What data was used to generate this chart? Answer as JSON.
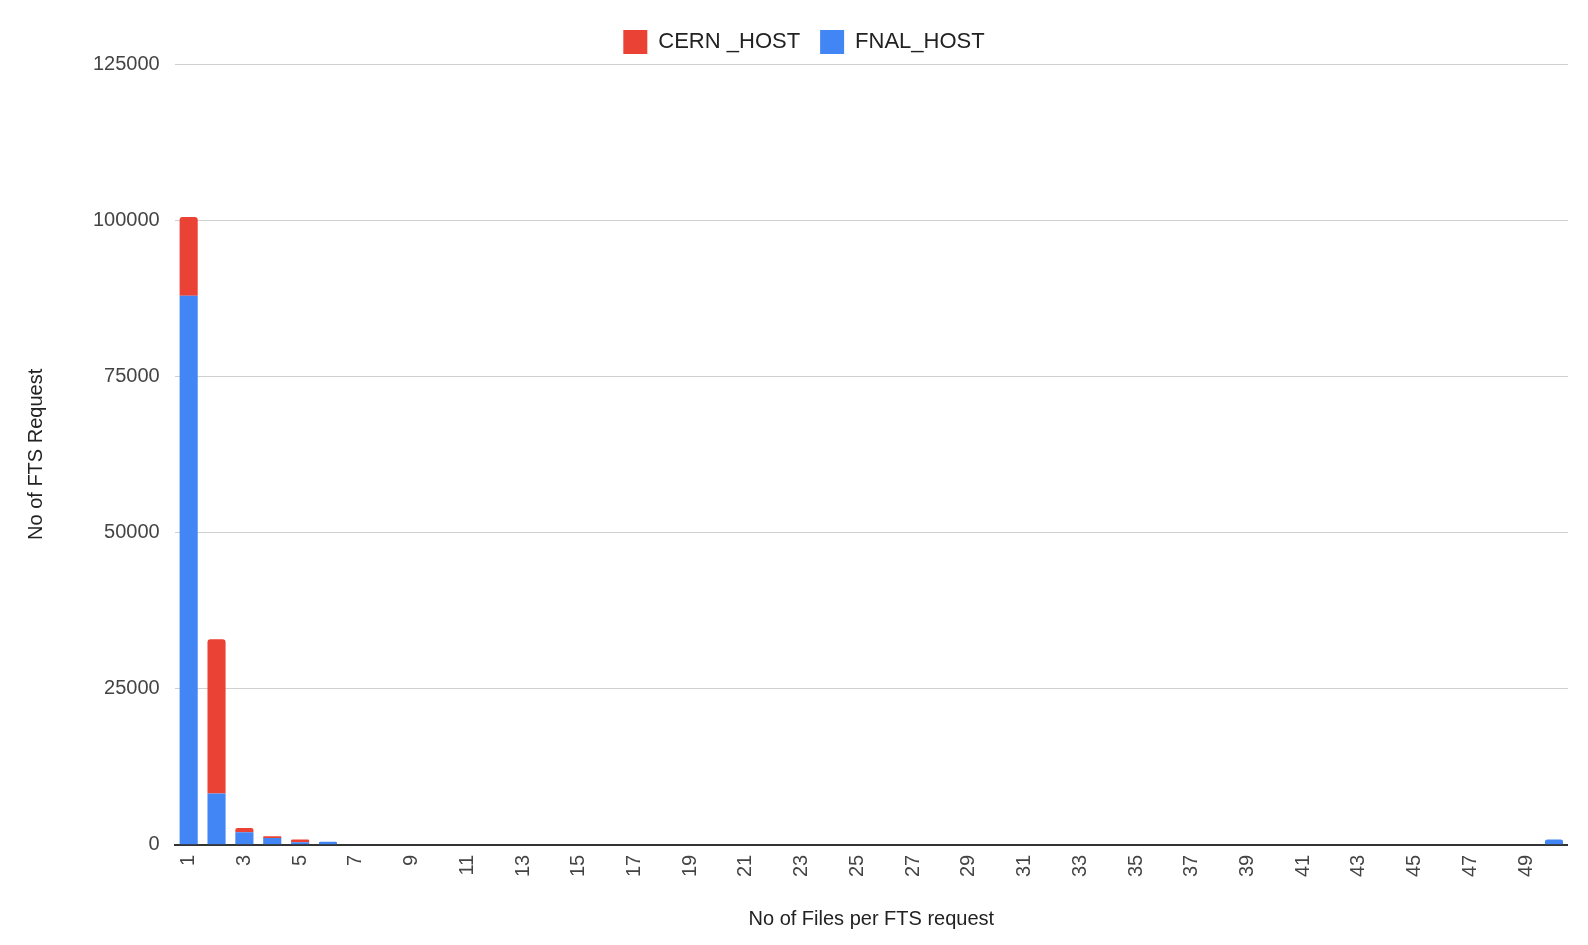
{
  "chart_data": {
    "type": "bar",
    "stacked": true,
    "xlabel": "No of Files per FTS request",
    "ylabel": "No of FTS Request",
    "categories": [
      "1",
      null,
      "3",
      null,
      "5",
      null,
      "7",
      null,
      "9",
      null,
      "11",
      null,
      "13",
      null,
      "15",
      null,
      "17",
      null,
      "19",
      null,
      "21",
      null,
      "23",
      null,
      "25",
      null,
      "27",
      null,
      "29",
      null,
      "31",
      null,
      "33",
      null,
      "35",
      null,
      "37",
      null,
      "39",
      null,
      "41",
      null,
      "43",
      null,
      "45",
      null,
      "47",
      null,
      "49",
      null
    ],
    "series": [
      {
        "name": "FNAL_HOST",
        "color": "#4285f4",
        "values": [
          87900,
          8200,
          2000,
          1100,
          400,
          500,
          0,
          0,
          0,
          0,
          0,
          0,
          0,
          0,
          0,
          0,
          0,
          0,
          0,
          0,
          0,
          0,
          0,
          0,
          0,
          0,
          0,
          0,
          0,
          0,
          0,
          0,
          0,
          0,
          0,
          0,
          0,
          0,
          0,
          0,
          0,
          0,
          0,
          0,
          0,
          0,
          0,
          0,
          0,
          850
        ]
      },
      {
        "name": "CERN _HOST",
        "color": "#ea4335",
        "values": [
          12600,
          24700,
          700,
          250,
          450,
          0,
          0,
          0,
          0,
          0,
          0,
          0,
          0,
          0,
          0,
          0,
          0,
          0,
          0,
          0,
          0,
          0,
          0,
          0,
          0,
          0,
          0,
          0,
          0,
          0,
          0,
          0,
          0,
          0,
          0,
          0,
          0,
          0,
          0,
          0,
          0,
          0,
          0,
          0,
          0,
          0,
          0,
          0,
          0,
          0
        ]
      }
    ],
    "ylim": [
      0,
      125000
    ],
    "yticks": [
      0,
      25000,
      50000,
      75000,
      100000,
      125000
    ],
    "grid": "y",
    "legend": "top"
  }
}
